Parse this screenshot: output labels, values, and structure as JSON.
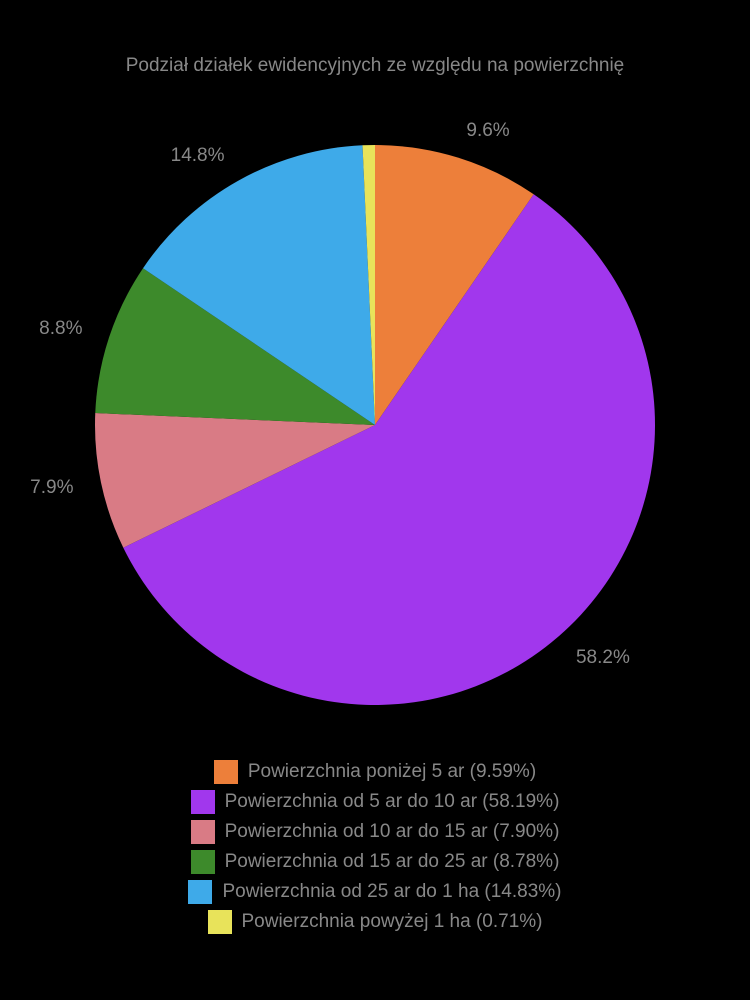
{
  "chart": {
    "type": "pie",
    "title": "Podział działek ewidencyjnych ze względu na powierzchnię",
    "title_fontsize": 19,
    "title_color": "#888888",
    "background_color": "#000000",
    "label_color": "#888888",
    "label_fontsize": 19,
    "legend_fontsize": 19,
    "legend_swatch_size": 24,
    "pie_radius": 280,
    "start_angle_deg": 90,
    "direction": "clockwise",
    "slices": [
      {
        "legend": "Powierzchnia poniżej 5 ar (9.59%)",
        "value": 9.59,
        "label": "9.6%",
        "color": "#ed7f3a"
      },
      {
        "legend": "Powierzchnia od 5 ar do 10 ar (58.19%)",
        "value": 58.19,
        "label": "58.2%",
        "color": "#a137ed"
      },
      {
        "legend": "Powierzchnia od 10 ar do 15 ar (7.90%)",
        "value": 7.9,
        "label": "7.9%",
        "color": "#d97b85"
      },
      {
        "legend": "Powierzchnia od 15 ar do 25 ar (8.78%)",
        "value": 8.78,
        "label": "8.8%",
        "color": "#3d8a2b"
      },
      {
        "legend": "Powierzchnia od 25 ar do 1 ha (14.83%)",
        "value": 14.83,
        "label": "14.8%",
        "color": "#3eaae9"
      },
      {
        "legend": "Powierzchnia powyżej 1 ha (0.71%)",
        "value": 0.71,
        "label": "",
        "color": "#e8e35a"
      }
    ]
  }
}
